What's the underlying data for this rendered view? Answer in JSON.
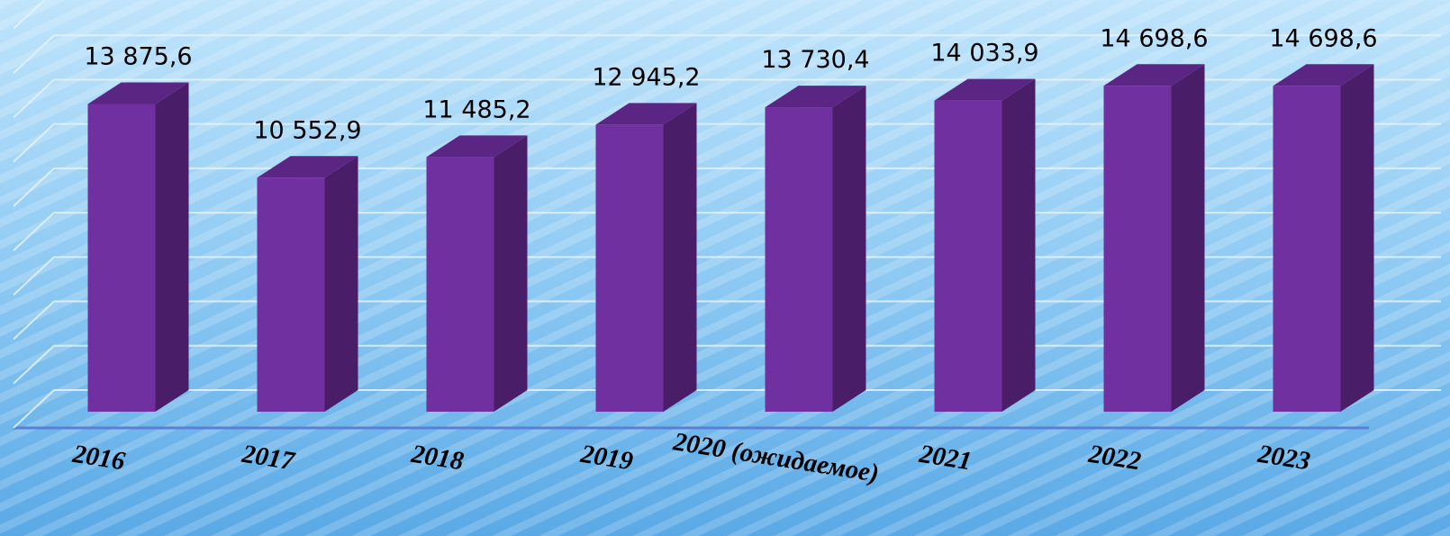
{
  "chart_data": {
    "type": "bar",
    "categories": [
      "2016",
      "2017",
      "2018",
      "2019",
      "2020 (ожидаемое)",
      "2021",
      "2022",
      "2023"
    ],
    "values": [
      13875.6,
      10552.9,
      11485.2,
      12945.2,
      13730.4,
      14033.9,
      14698.6,
      14698.6
    ],
    "value_labels": [
      "13 875,6",
      "10 552,9",
      "11 485,2",
      "12 945,2",
      "13 730,4",
      "14 033,9",
      "14 698,6",
      "14 698,6"
    ],
    "color": "#7030a0",
    "ylim": [
      0,
      18000
    ],
    "yticks": [
      0,
      2000,
      4000,
      6000,
      8000,
      10000,
      12000,
      14000,
      16000,
      18000
    ],
    "grid": true
  }
}
